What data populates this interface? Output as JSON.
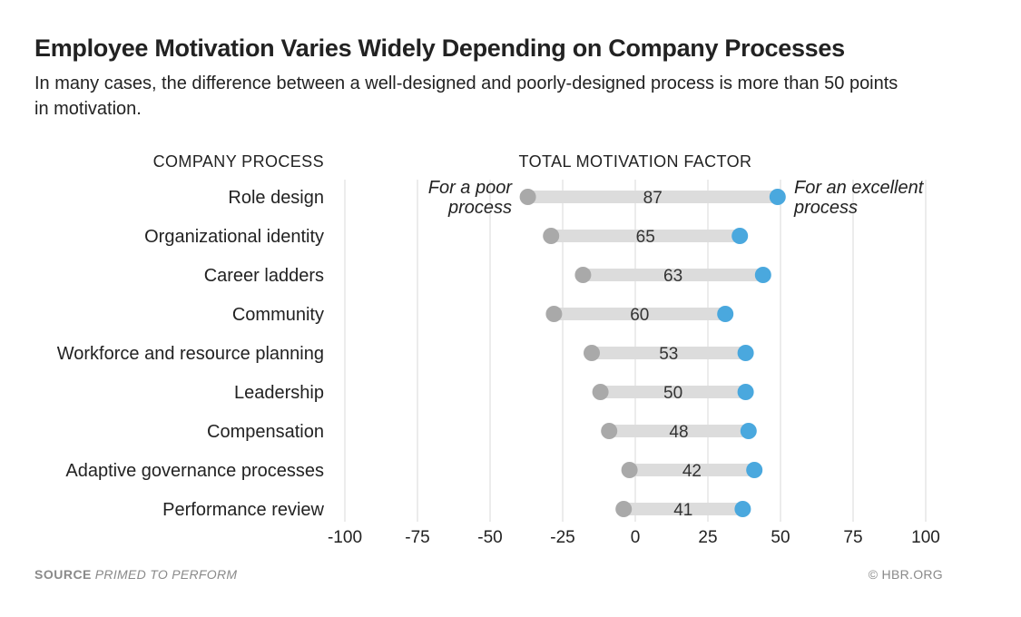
{
  "header": {
    "title": "Employee Motivation Varies Widely Depending on Company Processes",
    "subtitle": "In many cases, the difference between a well-designed and poorly-designed process is more than 50 points in motivation."
  },
  "footer": {
    "source_label": "SOURCE",
    "source_text": "PRIMED TO PERFORM",
    "credit": "© HBR.ORG"
  },
  "colors": {
    "poor": "#a9a9a9",
    "excellent": "#4aa8de",
    "range_bar": "#dcdcdc",
    "grid": "#e6e6e6"
  },
  "chart_data": {
    "type": "dumbbell",
    "category_axis_label": "COMPANY PROCESS",
    "value_axis_label": "TOTAL MOTIVATION FACTOR",
    "annotations": {
      "poor_line1": "For a poor",
      "poor_line2": "process",
      "excellent_line1": "For an excellent",
      "excellent_line2": "process"
    },
    "xlim": [
      -100,
      100
    ],
    "ticks": [
      -100,
      -75,
      -50,
      -25,
      0,
      25,
      50,
      75,
      100
    ],
    "tick_labels": [
      "-100",
      "-75",
      "-50",
      "-25",
      "0",
      "25",
      "50",
      "75",
      "100"
    ],
    "series": [
      {
        "name": "For a poor process",
        "key": "poor"
      },
      {
        "name": "For an excellent process",
        "key": "excellent"
      }
    ],
    "rows": [
      {
        "category": "Role design",
        "poor": -37,
        "excellent": 49,
        "difference": "87"
      },
      {
        "category": "Organizational identity",
        "poor": -29,
        "excellent": 36,
        "difference": "65"
      },
      {
        "category": "Career ladders",
        "poor": -18,
        "excellent": 44,
        "difference": "63"
      },
      {
        "category": "Community",
        "poor": -28,
        "excellent": 31,
        "difference": "60"
      },
      {
        "category": "Workforce and resource planning",
        "poor": -15,
        "excellent": 38,
        "difference": "53"
      },
      {
        "category": "Leadership",
        "poor": -12,
        "excellent": 38,
        "difference": "50"
      },
      {
        "category": "Compensation",
        "poor": -9,
        "excellent": 39,
        "difference": "48"
      },
      {
        "category": "Adaptive governance processes",
        "poor": -2,
        "excellent": 41,
        "difference": "42"
      },
      {
        "category": "Performance review",
        "poor": -4,
        "excellent": 37,
        "difference": "41"
      }
    ]
  }
}
